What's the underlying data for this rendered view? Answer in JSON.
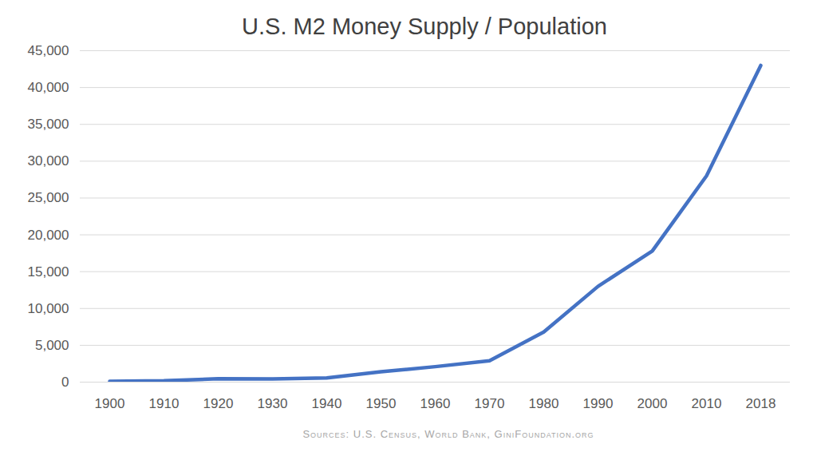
{
  "chart_data": {
    "type": "line",
    "title": "U.S. M2 Money Supply / Population",
    "caption": "Sources: U.S. Census, World Bank, GiniFoundation.org",
    "categories": [
      "1900",
      "1910",
      "1920",
      "1930",
      "1940",
      "1950",
      "1960",
      "1970",
      "1980",
      "1990",
      "2000",
      "2010",
      "2018"
    ],
    "values": [
      100,
      180,
      460,
      430,
      560,
      1400,
      2100,
      2900,
      6800,
      13000,
      17800,
      28000,
      43000
    ],
    "color": "#4472c4",
    "ylim": [
      0,
      45000
    ],
    "yticks": [
      0,
      {
        "value": 5000,
        "label": "5,000"
      },
      {
        "value": 10000,
        "label": "10,000"
      },
      {
        "value": 15000,
        "label": "15,000"
      },
      {
        "value": 20000,
        "label": "20,000"
      },
      {
        "value": 25000,
        "label": "25,000"
      },
      {
        "value": 30000,
        "label": "30,000"
      },
      {
        "value": 35000,
        "label": "35,000"
      },
      {
        "value": 40000,
        "label": "40,000"
      },
      {
        "value": 45000,
        "label": "45,000"
      }
    ],
    "grid": true
  }
}
